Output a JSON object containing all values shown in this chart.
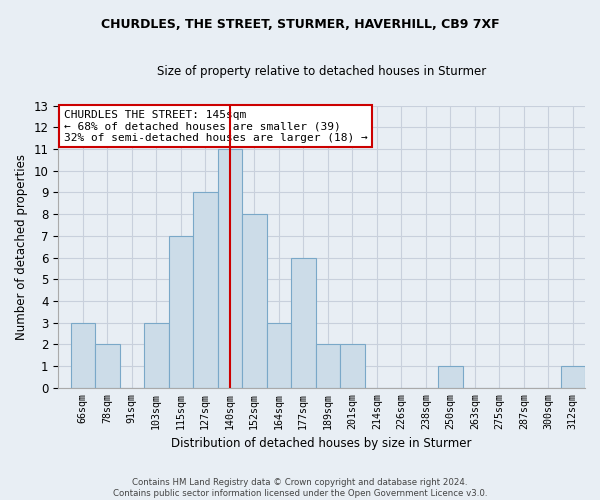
{
  "title": "CHURDLES, THE STREET, STURMER, HAVERHILL, CB9 7XF",
  "subtitle": "Size of property relative to detached houses in Sturmer",
  "xlabel": "Distribution of detached houses by size in Sturmer",
  "ylabel": "Number of detached properties",
  "footer_line1": "Contains HM Land Registry data © Crown copyright and database right 2024.",
  "footer_line2": "Contains public sector information licensed under the Open Government Licence v3.0.",
  "bin_labels": [
    "66sqm",
    "78sqm",
    "91sqm",
    "103sqm",
    "115sqm",
    "127sqm",
    "140sqm",
    "152sqm",
    "164sqm",
    "177sqm",
    "189sqm",
    "201sqm",
    "214sqm",
    "226sqm",
    "238sqm",
    "250sqm",
    "263sqm",
    "275sqm",
    "287sqm",
    "300sqm",
    "312sqm"
  ],
  "bar_heights": [
    3,
    2,
    0,
    3,
    7,
    9,
    11,
    8,
    3,
    6,
    2,
    2,
    0,
    0,
    0,
    1,
    0,
    0,
    0,
    0,
    1
  ],
  "bar_color": "#ccdce8",
  "bar_edge_color": "#7aa8c8",
  "vline_color": "#cc0000",
  "vline_x": 6.5,
  "annotation_title": "CHURDLES THE STREET: 145sqm",
  "annotation_line1": "← 68% of detached houses are smaller (39)",
  "annotation_line2": "32% of semi-detached houses are larger (18) →",
  "annotation_box_color": "#ffffff",
  "annotation_box_edge_color": "#cc0000",
  "ylim": [
    0,
    13
  ],
  "yticks": [
    0,
    1,
    2,
    3,
    4,
    5,
    6,
    7,
    8,
    9,
    10,
    11,
    12,
    13
  ],
  "grid_color": "#c8d0dc",
  "bg_color": "#e8eef4",
  "title_fontsize": 9,
  "subtitle_fontsize": 8.5
}
